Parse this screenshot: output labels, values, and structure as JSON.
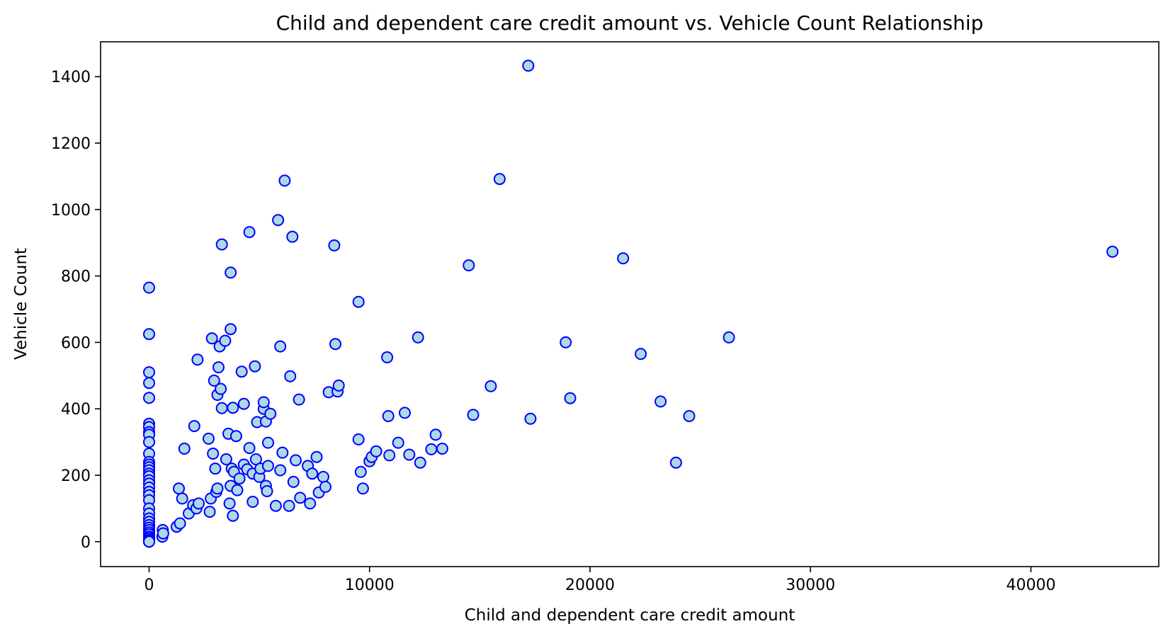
{
  "chart_data": {
    "type": "scatter",
    "title": "Child and dependent care credit amount vs. Vehicle Count Relationship",
    "xlabel": "Child and dependent care credit amount",
    "ylabel": "Vehicle Count",
    "xlim": [
      -2200,
      45800
    ],
    "ylim": [
      -75,
      1505
    ],
    "xticks": [
      0,
      10000,
      20000,
      30000,
      40000
    ],
    "yticks": [
      0,
      200,
      400,
      600,
      800,
      1000,
      1200,
      1400
    ],
    "grid": false,
    "legend": "none",
    "marker_fill": "#add8e6",
    "marker_edge": "#0000ff",
    "points": [
      [
        0,
        765
      ],
      [
        0,
        625
      ],
      [
        0,
        510
      ],
      [
        0,
        478
      ],
      [
        0,
        433
      ],
      [
        0,
        355
      ],
      [
        0,
        345
      ],
      [
        0,
        330
      ],
      [
        0,
        322
      ],
      [
        0,
        300
      ],
      [
        0,
        265
      ],
      [
        0,
        240
      ],
      [
        0,
        232
      ],
      [
        0,
        224
      ],
      [
        0,
        215
      ],
      [
        0,
        205
      ],
      [
        0,
        197
      ],
      [
        0,
        185
      ],
      [
        0,
        175
      ],
      [
        0,
        163
      ],
      [
        0,
        150
      ],
      [
        0,
        140
      ],
      [
        0,
        125
      ],
      [
        0,
        100
      ],
      [
        0,
        85
      ],
      [
        0,
        70
      ],
      [
        0,
        60
      ],
      [
        0,
        50
      ],
      [
        0,
        42
      ],
      [
        0,
        35
      ],
      [
        0,
        28
      ],
      [
        0,
        22
      ],
      [
        0,
        15
      ],
      [
        0,
        10
      ],
      [
        0,
        5
      ],
      [
        0,
        0
      ],
      [
        0,
        0
      ],
      [
        0,
        0
      ],
      [
        600,
        15
      ],
      [
        620,
        35
      ],
      [
        640,
        25
      ],
      [
        1250,
        45
      ],
      [
        1400,
        55
      ],
      [
        1350,
        160
      ],
      [
        1500,
        130
      ],
      [
        1600,
        280
      ],
      [
        1800,
        85
      ],
      [
        2000,
        110
      ],
      [
        2050,
        348
      ],
      [
        2150,
        100
      ],
      [
        2200,
        548
      ],
      [
        2250,
        115
      ],
      [
        2700,
        310
      ],
      [
        2750,
        90
      ],
      [
        2800,
        130
      ],
      [
        2850,
        612
      ],
      [
        2900,
        265
      ],
      [
        2950,
        485
      ],
      [
        3000,
        220
      ],
      [
        3050,
        150
      ],
      [
        3100,
        160
      ],
      [
        3100,
        442
      ],
      [
        3150,
        525
      ],
      [
        3200,
        588
      ],
      [
        3250,
        460
      ],
      [
        3300,
        895
      ],
      [
        3300,
        402
      ],
      [
        3450,
        605
      ],
      [
        3500,
        248
      ],
      [
        3600,
        325
      ],
      [
        3650,
        115
      ],
      [
        3700,
        640
      ],
      [
        3700,
        810
      ],
      [
        3700,
        168
      ],
      [
        3750,
        220
      ],
      [
        3800,
        78
      ],
      [
        3800,
        403
      ],
      [
        3850,
        210
      ],
      [
        3950,
        318
      ],
      [
        4000,
        155
      ],
      [
        4100,
        190
      ],
      [
        4200,
        512
      ],
      [
        4300,
        415
      ],
      [
        4300,
        232
      ],
      [
        4450,
        218
      ],
      [
        4550,
        282
      ],
      [
        4550,
        932
      ],
      [
        4700,
        120
      ],
      [
        4700,
        205
      ],
      [
        4800,
        528
      ],
      [
        4850,
        248
      ],
      [
        4900,
        360
      ],
      [
        5000,
        195
      ],
      [
        5050,
        220
      ],
      [
        5200,
        400
      ],
      [
        5200,
        420
      ],
      [
        5300,
        168
      ],
      [
        5300,
        362
      ],
      [
        5350,
        152
      ],
      [
        5400,
        298
      ],
      [
        5500,
        385
      ],
      [
        5400,
        228
      ],
      [
        5750,
        108
      ],
      [
        5850,
        968
      ],
      [
        5950,
        588
      ],
      [
        5950,
        215
      ],
      [
        6050,
        268
      ],
      [
        6150,
        1087
      ],
      [
        6350,
        108
      ],
      [
        6400,
        498
      ],
      [
        6500,
        918
      ],
      [
        6550,
        180
      ],
      [
        6650,
        245
      ],
      [
        6800,
        428
      ],
      [
        6850,
        132
      ],
      [
        7200,
        228
      ],
      [
        7300,
        115
      ],
      [
        7400,
        205
      ],
      [
        7600,
        255
      ],
      [
        7700,
        148
      ],
      [
        7900,
        195
      ],
      [
        8000,
        165
      ],
      [
        8150,
        450
      ],
      [
        8400,
        892
      ],
      [
        8450,
        595
      ],
      [
        8550,
        452
      ],
      [
        8600,
        470
      ],
      [
        9500,
        308
      ],
      [
        9500,
        722
      ],
      [
        9600,
        210
      ],
      [
        9700,
        160
      ],
      [
        10000,
        242
      ],
      [
        10100,
        255
      ],
      [
        10300,
        272
      ],
      [
        10800,
        555
      ],
      [
        10850,
        378
      ],
      [
        10900,
        260
      ],
      [
        11300,
        298
      ],
      [
        11600,
        388
      ],
      [
        11800,
        262
      ],
      [
        12200,
        615
      ],
      [
        12300,
        238
      ],
      [
        12800,
        278
      ],
      [
        13000,
        322
      ],
      [
        13300,
        280
      ],
      [
        14500,
        832
      ],
      [
        14700,
        382
      ],
      [
        15500,
        468
      ],
      [
        15900,
        1092
      ],
      [
        17200,
        1433
      ],
      [
        17300,
        370
      ],
      [
        18900,
        600
      ],
      [
        19100,
        432
      ],
      [
        21500,
        853
      ],
      [
        22300,
        565
      ],
      [
        23200,
        422
      ],
      [
        23900,
        238
      ],
      [
        24500,
        378
      ],
      [
        26300,
        615
      ],
      [
        43700,
        873
      ]
    ]
  }
}
